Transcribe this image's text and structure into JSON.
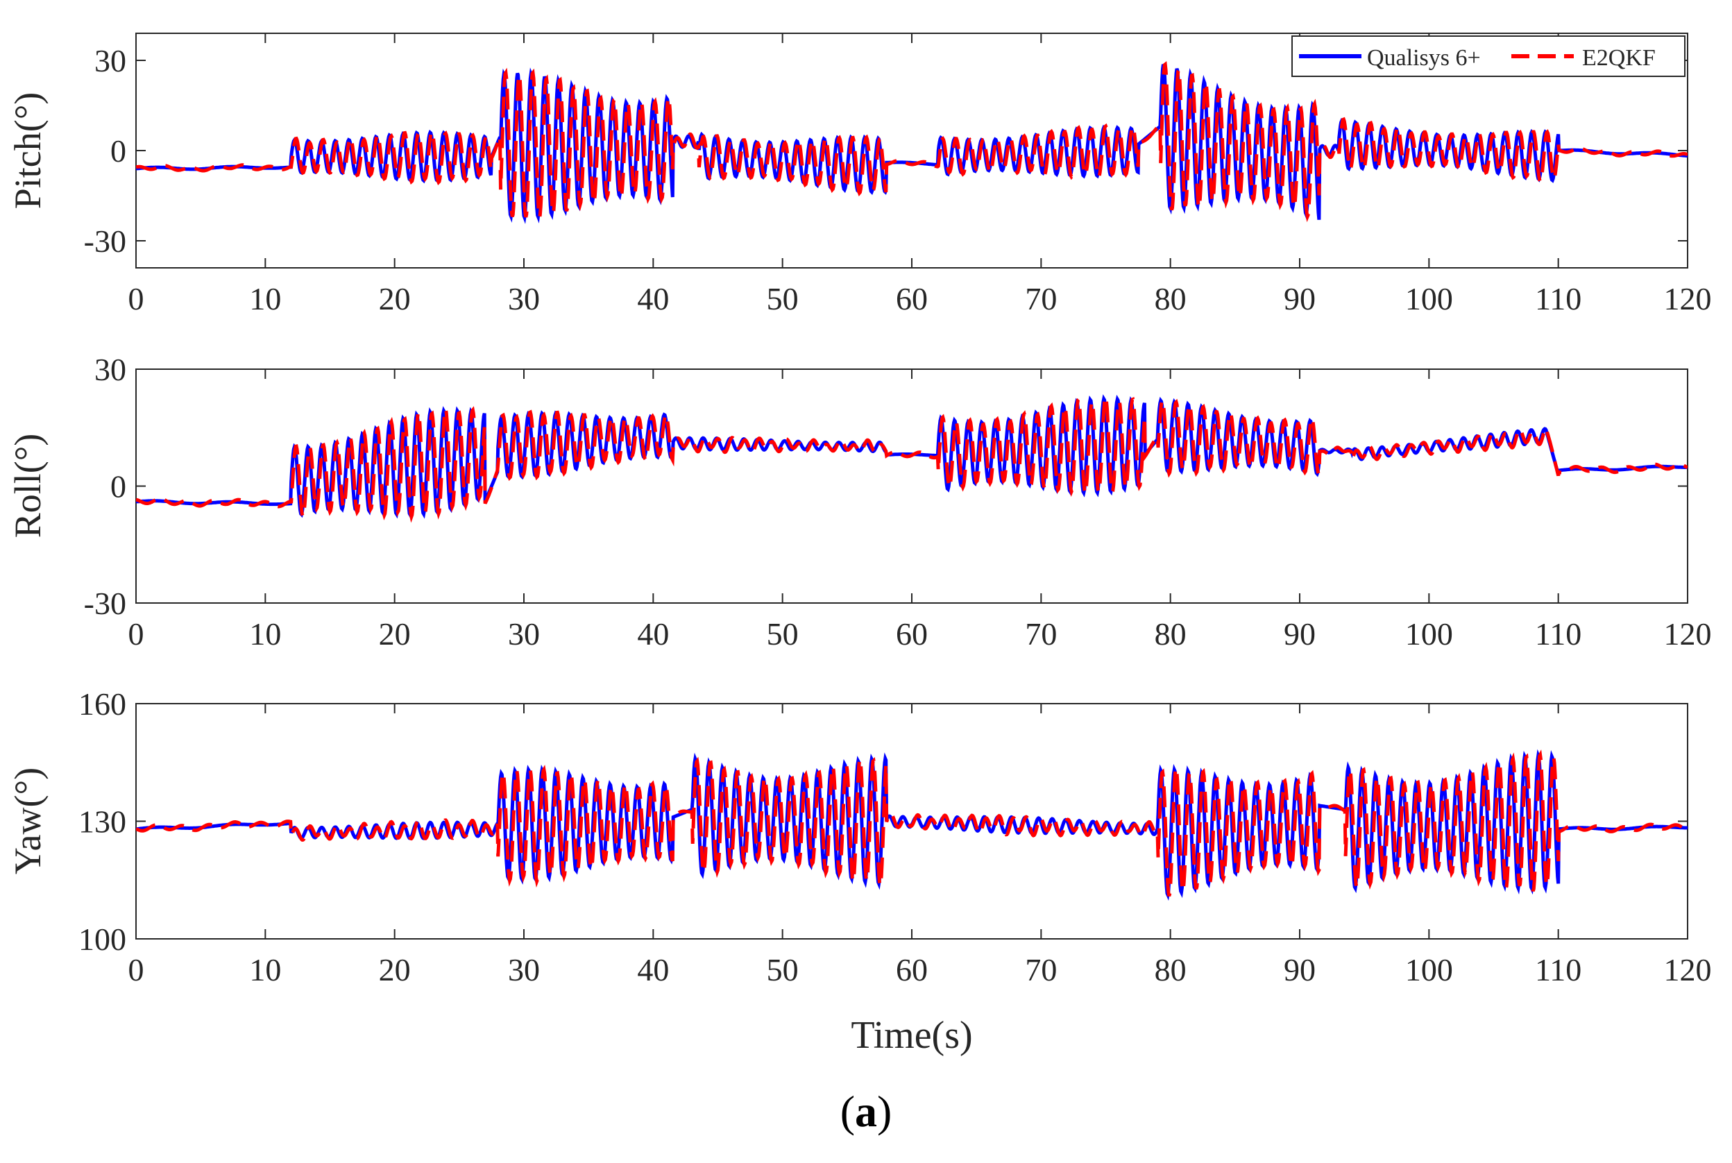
{
  "chart_data": [
    {
      "type": "line",
      "ylabel": "Pitch(°)",
      "xlim": [
        0,
        120
      ],
      "ylim": [
        -39,
        39
      ],
      "xticks": [
        "0",
        "10",
        "20",
        "30",
        "40",
        "50",
        "60",
        "70",
        "80",
        "90",
        "100",
        "110",
        "120"
      ],
      "yticks": [
        {
          "value": 30,
          "label": "30"
        },
        {
          "value": 0,
          "label": "0"
        },
        {
          "value": -30,
          "label": "-30"
        }
      ],
      "legend": {
        "position": "top-right",
        "entries": [
          "Qualisys 6+",
          "E2QKF"
        ]
      },
      "series": [
        {
          "name": "Qualisys 6+",
          "color": "#0000ff",
          "style": "solid"
        },
        {
          "name": "E2QKF",
          "color": "#ff0000",
          "style": "dashed"
        }
      ],
      "segments": [
        {
          "t0": 0,
          "t1": 12,
          "c0": -6,
          "c1": -5.5,
          "amp": 0.4,
          "period": 6
        },
        {
          "t0": 12,
          "t1": 27.5,
          "c0": -2,
          "c1": -2,
          "amp": 8,
          "period": 1.05
        },
        {
          "t0": 27.5,
          "t1": 28.2,
          "c0": -2,
          "c1": 5,
          "amp": 0,
          "period": 1
        },
        {
          "t0": 28.2,
          "t1": 41.5,
          "c0": 2,
          "c1": 0,
          "amp": 24,
          "period": 1.05
        },
        {
          "t0": 41.5,
          "t1": 43.5,
          "c0": 3,
          "c1": 3,
          "amp": 2,
          "period": 1
        },
        {
          "t0": 43.5,
          "t1": 58,
          "c0": -2,
          "c1": -5,
          "amp": 9,
          "period": 1.05
        },
        {
          "t0": 58,
          "t1": 62,
          "c0": -4,
          "c1": -4.5,
          "amp": 0.4,
          "period": 6
        },
        {
          "t0": 62,
          "t1": 77.5,
          "c0": -2,
          "c1": 0,
          "amp": 8,
          "period": 1.05
        },
        {
          "t0": 77.5,
          "t1": 79.2,
          "c0": 2,
          "c1": 8,
          "amp": 0,
          "period": 1
        },
        {
          "t0": 79.2,
          "t1": 91.5,
          "c0": 5,
          "c1": -4,
          "amp": 24,
          "period": 1.05
        },
        {
          "t0": 91.5,
          "t1": 93,
          "c0": 0,
          "c1": 0,
          "amp": 2,
          "period": 1
        },
        {
          "t0": 93,
          "t1": 110,
          "c0": 2,
          "c1": -2,
          "amp": 8,
          "period": 1.05
        },
        {
          "t0": 110,
          "t1": 120,
          "c0": 0,
          "c1": -1.5,
          "amp": 0.4,
          "period": 6
        }
      ]
    },
    {
      "type": "line",
      "ylabel": "Roll(°)",
      "xlim": [
        0,
        120
      ],
      "ylim": [
        -30,
        30
      ],
      "xticks": [
        "0",
        "10",
        "20",
        "30",
        "40",
        "50",
        "60",
        "70",
        "80",
        "90",
        "100",
        "110",
        "120"
      ],
      "yticks": [
        {
          "value": 30,
          "label": "30"
        },
        {
          "value": 0,
          "label": "0"
        },
        {
          "value": -30,
          "label": "-30"
        }
      ],
      "series": [
        {
          "name": "Qualisys 6+",
          "color": "#0000ff",
          "style": "solid"
        },
        {
          "name": "E2QKF",
          "color": "#ff0000",
          "style": "dashed"
        }
      ],
      "segments": [
        {
          "t0": 0,
          "t1": 12,
          "c0": -4,
          "c1": -4.5,
          "amp": 0.3,
          "period": 6
        },
        {
          "t0": 12,
          "t1": 27,
          "c0": 1,
          "c1": 8,
          "amp": 13,
          "period": 1.05
        },
        {
          "t0": 27,
          "t1": 28,
          "c0": -4,
          "c1": 4,
          "amp": 0,
          "period": 1
        },
        {
          "t0": 28,
          "t1": 41.5,
          "c0": 10,
          "c1": 13,
          "amp": 8,
          "period": 1.05
        },
        {
          "t0": 41.5,
          "t1": 58,
          "c0": 11,
          "c1": 10,
          "amp": 1.5,
          "period": 1.05
        },
        {
          "t0": 58,
          "t1": 62,
          "c0": 8,
          "c1": 8,
          "amp": 0.3,
          "period": 6
        },
        {
          "t0": 62,
          "t1": 78,
          "c0": 8,
          "c1": 11,
          "amp": 12,
          "period": 1.05
        },
        {
          "t0": 78,
          "t1": 79,
          "c0": 8,
          "c1": 12,
          "amp": 0,
          "period": 1
        },
        {
          "t0": 79,
          "t1": 91.5,
          "c0": 13,
          "c1": 10,
          "amp": 9,
          "period": 1.05
        },
        {
          "t0": 91.5,
          "t1": 94,
          "c0": 9,
          "c1": 9,
          "amp": 0.5,
          "period": 1
        },
        {
          "t0": 94,
          "t1": 109,
          "c0": 8,
          "c1": 13,
          "amp": 1.8,
          "period": 1.05
        },
        {
          "t0": 109,
          "t1": 110,
          "c0": 15,
          "c1": 3,
          "amp": 0,
          "period": 1
        },
        {
          "t0": 110,
          "t1": 120,
          "c0": 4,
          "c1": 5,
          "amp": 0.3,
          "period": 6
        }
      ]
    },
    {
      "type": "line",
      "ylabel": "Yaw(°)",
      "xlabel": "Time(s)",
      "xlim": [
        0,
        120
      ],
      "ylim": [
        100,
        160
      ],
      "xticks": [
        "0",
        "10",
        "20",
        "30",
        "40",
        "50",
        "60",
        "70",
        "80",
        "90",
        "100",
        "110",
        "120"
      ],
      "yticks": [
        {
          "value": 160,
          "label": "160"
        },
        {
          "value": 130,
          "label": "130"
        },
        {
          "value": 100,
          "label": "100"
        }
      ],
      "series": [
        {
          "name": "Qualisys 6+",
          "color": "#0000ff",
          "style": "solid"
        },
        {
          "name": "E2QKF",
          "color": "#ff0000",
          "style": "dashed"
        }
      ],
      "segments": [
        {
          "t0": 0,
          "t1": 12,
          "c0": 128,
          "c1": 129.5,
          "amp": 0.3,
          "period": 6
        },
        {
          "t0": 12,
          "t1": 28,
          "c0": 127,
          "c1": 128,
          "amp": 2,
          "period": 1.05
        },
        {
          "t0": 28,
          "t1": 41.5,
          "c0": 129,
          "c1": 130,
          "amp": 14,
          "period": 1.05
        },
        {
          "t0": 41.5,
          "t1": 43,
          "c0": 131,
          "c1": 133,
          "amp": 0,
          "period": 1
        },
        {
          "t0": 43,
          "t1": 58,
          "c0": 131,
          "c1": 130,
          "amp": 16,
          "period": 1.05
        },
        {
          "t0": 58,
          "t1": 79,
          "c0": 130,
          "c1": 128,
          "amp": 2,
          "period": 1.05
        },
        {
          "t0": 79,
          "t1": 91.5,
          "c0": 127,
          "c1": 130,
          "amp": 16,
          "period": 1.05
        },
        {
          "t0": 91.5,
          "t1": 93.5,
          "c0": 134,
          "c1": 133,
          "amp": 0,
          "period": 1
        },
        {
          "t0": 93.5,
          "t1": 110,
          "c0": 128,
          "c1": 130,
          "amp": 17,
          "period": 1.05
        },
        {
          "t0": 110,
          "t1": 120,
          "c0": 128,
          "c1": 128.5,
          "amp": 0.3,
          "period": 6
        }
      ]
    }
  ],
  "caption": "a"
}
